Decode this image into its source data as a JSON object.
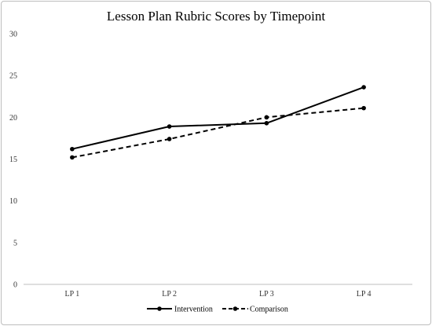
{
  "chart_data": {
    "type": "line",
    "title": "Lesson Plan Rubric Scores by Timepoint",
    "categories": [
      "LP 1",
      "LP 2",
      "LP 3",
      "LP 4"
    ],
    "ylim": [
      0,
      30
    ],
    "yticks": [
      "0",
      "5",
      "10",
      "15",
      "20",
      "25",
      "30"
    ],
    "grid": false,
    "legend_position": "bottom",
    "series": [
      {
        "name": "Intervention",
        "values": [
          16.2,
          18.9,
          19.3,
          23.6
        ],
        "color": "#000000",
        "dash": "solid"
      },
      {
        "name": "Comparison",
        "values": [
          15.2,
          17.4,
          20.0,
          21.1
        ],
        "color": "#000000",
        "dash": "dashed"
      }
    ]
  }
}
